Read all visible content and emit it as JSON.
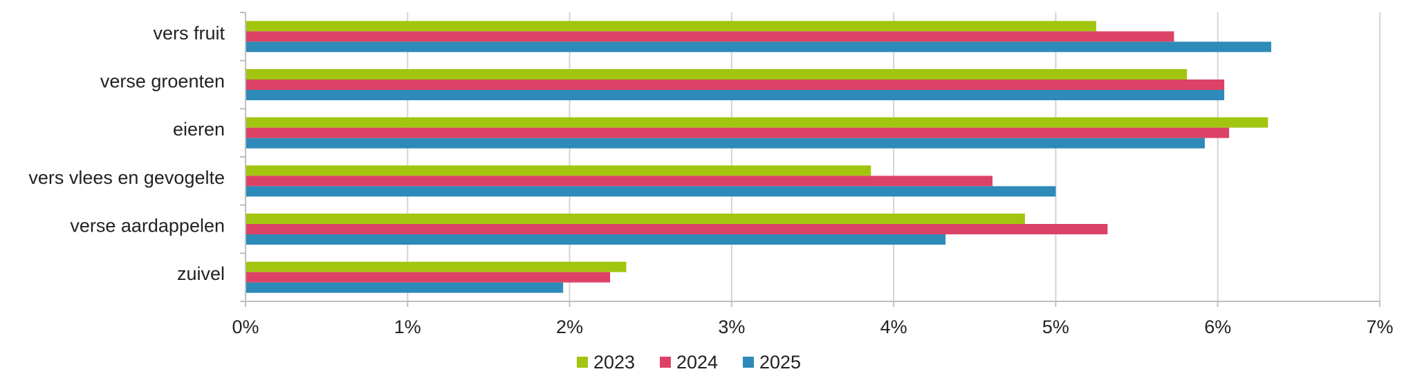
{
  "chart_data": {
    "type": "bar",
    "orientation": "horizontal",
    "categories": [
      "vers fruit",
      "verse groenten",
      "eieren",
      "vers vlees en gevogelte",
      "verse aardappelen",
      "zuivel"
    ],
    "series": [
      {
        "name": "2023",
        "color": "#a2c510",
        "values": [
          5.25,
          5.81,
          6.31,
          3.86,
          4.81,
          2.35
        ]
      },
      {
        "name": "2024",
        "color": "#dc4266",
        "values": [
          5.73,
          6.04,
          6.07,
          4.61,
          5.32,
          2.25
        ]
      },
      {
        "name": "2025",
        "color": "#2e8ab8",
        "values": [
          6.33,
          6.04,
          5.92,
          5.0,
          4.32,
          1.96
        ]
      }
    ],
    "xlim": [
      0,
      7
    ],
    "xticks": [
      0,
      1,
      2,
      3,
      4,
      5,
      6,
      7
    ],
    "xtick_labels": [
      "0%",
      "1%",
      "2%",
      "3%",
      "4%",
      "5%",
      "6%",
      "7%"
    ],
    "grid": true,
    "legend_position": "bottom",
    "title": "",
    "xlabel": "",
    "ylabel": ""
  }
}
